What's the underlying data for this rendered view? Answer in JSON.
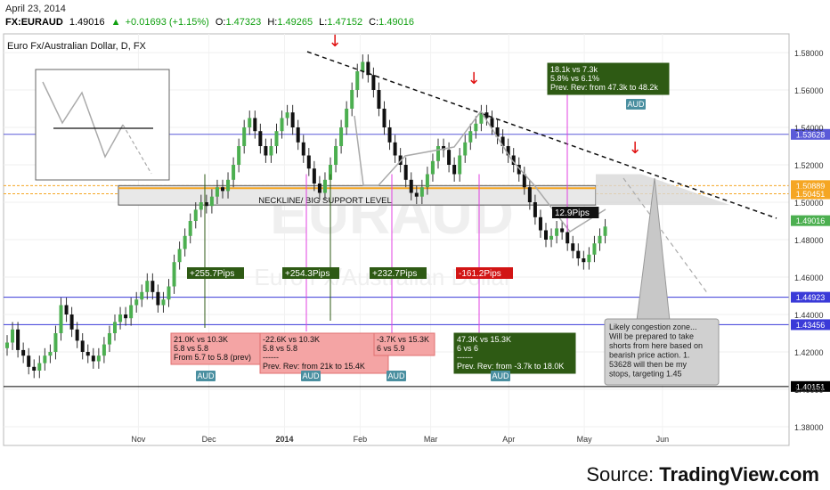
{
  "header": {
    "date": "April 23, 2014",
    "symbol": "FX:EURAUD",
    "last": "1.49016",
    "change": "+0.01693 (+1.15%)",
    "open_label": "O:",
    "open": "1.47323",
    "high_label": "H:",
    "high": "1.49265",
    "low_label": "L:",
    "low": "1.47152",
    "close_label": "C:",
    "close": "1.49016"
  },
  "chart_title": "Euro Fx/Australian Dollar, D, FX",
  "watermark": "EURAUD",
  "watermark_sub": "Euro Fx/Australian Dollar",
  "source": {
    "prefix": "Source: ",
    "brand": "TradingView.com"
  },
  "colors": {
    "up": "#4caf50",
    "down": "#111111",
    "wick": "#333333",
    "price_badge": "#1a1aa0",
    "last_badge": "#4caf50",
    "support": "#f5a623",
    "green_box": "#2e5a14",
    "red_box": "#e96a6a",
    "pink_line": "#e040e0",
    "aud_badge": "#4a8fa0"
  },
  "chart_data": {
    "type": "candlestick",
    "ylim": [
      1.37,
      1.59
    ],
    "y_ticks": [
      "1.58000",
      "1.56000",
      "1.54000",
      "1.52000",
      "1.50000",
      "1.48000",
      "1.46000",
      "1.44000",
      "1.42000",
      "1.40000",
      "1.38000"
    ],
    "y_tick_values": [
      1.58,
      1.56,
      1.54,
      1.52,
      1.5,
      1.48,
      1.46,
      1.44,
      1.42,
      1.4,
      1.38
    ],
    "x_labels": [
      "Nov",
      "Dec",
      "2014",
      "Feb",
      "Mar",
      "Apr",
      "May",
      "Jun"
    ],
    "x_label_days": [
      30,
      58,
      88,
      118,
      146,
      177,
      207,
      238
    ],
    "close_series": [
      1.425,
      1.432,
      1.421,
      1.418,
      1.412,
      1.41,
      1.414,
      1.418,
      1.42,
      1.43,
      1.445,
      1.44,
      1.432,
      1.426,
      1.42,
      1.418,
      1.415,
      1.418,
      1.424,
      1.43,
      1.436,
      1.44,
      1.438,
      1.445,
      1.448,
      1.452,
      1.458,
      1.452,
      1.445,
      1.448,
      1.455,
      1.468,
      1.475,
      1.482,
      1.49,
      1.496,
      1.5,
      1.498,
      1.503,
      1.508,
      1.506,
      1.512,
      1.52,
      1.53,
      1.54,
      1.545,
      1.538,
      1.53,
      1.525,
      1.53,
      1.538,
      1.545,
      1.548,
      1.54,
      1.532,
      1.525,
      1.518,
      1.51,
      1.505,
      1.512,
      1.52,
      1.53,
      1.54,
      1.55,
      1.56,
      1.57,
      1.575,
      1.568,
      1.56,
      1.55,
      1.54,
      1.532,
      1.525,
      1.52,
      1.512,
      1.505,
      1.503,
      1.508,
      1.515,
      1.522,
      1.53,
      1.528,
      1.52,
      1.515,
      1.525,
      1.532,
      1.538,
      1.542,
      1.548,
      1.545,
      1.54,
      1.535,
      1.53,
      1.525,
      1.52,
      1.515,
      1.508,
      1.5,
      1.492,
      1.485,
      1.48,
      1.482,
      1.486,
      1.484,
      1.478,
      1.474,
      1.47,
      1.468,
      1.472,
      1.478,
      1.482,
      1.487,
      1.49
    ],
    "price_levels": [
      {
        "value": 1.53628,
        "label": "1.53628",
        "color": "#5a5ad8"
      },
      {
        "value": 1.50889,
        "label": "1.50889",
        "color": "#f5a623"
      },
      {
        "value": 1.50451,
        "label": "1.50451",
        "color": "#f5a623"
      },
      {
        "value": 1.49016,
        "label": "1.49016",
        "color": "#4caf50"
      },
      {
        "value": 1.44923,
        "label": "1.44923",
        "color": "#3a3ad8"
      },
      {
        "value": 1.43456,
        "label": "1.43456",
        "color": "#3a3ad8"
      },
      {
        "value": 1.40151,
        "label": "1.40151",
        "color": "#000000"
      }
    ],
    "neckline_label": "NECKLINE/ BIG SUPPORT LEVEL",
    "pip_labels": [
      {
        "text": "+255.7Pips",
        "kind": "green"
      },
      {
        "text": "+254.3Pips",
        "kind": "green"
      },
      {
        "text": "+232.7Pips",
        "kind": "green"
      },
      {
        "text": "-161.2Pips",
        "kind": "red"
      },
      {
        "text": "12.9Pips",
        "kind": "dark"
      }
    ],
    "notes": [
      {
        "lines": [
          "21.0K vs 10.3K",
          "5.8 vs 5.8",
          "From 5.7 to 5.8 (prev)"
        ],
        "kind": "red"
      },
      {
        "lines": [
          "-22.6K vs 10.3K",
          "5.8 vs 5.8",
          "------",
          "Prev. Rev: from 21k to 15.4K"
        ],
        "kind": "red"
      },
      {
        "lines": [
          "-3.7K vs 15.3K",
          "6 vs 5.9"
        ],
        "kind": "red"
      },
      {
        "lines": [
          "47.3K vs 15.3K",
          "6 vs 6",
          "------",
          "Prev. Rev: from -3.7k to 18.0K"
        ],
        "kind": "green"
      },
      {
        "lines": [
          "18.1k vs 7.3k",
          "5.8% vs 6.1%",
          "Prev. Rev: from 47.3k to 48.2k"
        ],
        "kind": "green"
      }
    ],
    "aud_label": "AUD",
    "callout": [
      "Likely congestion zone...",
      "Will be prepared to take",
      "shorts from here based on",
      "bearish price action. 1.",
      "53628 will then be my",
      "stops, targeting 1.45"
    ]
  }
}
